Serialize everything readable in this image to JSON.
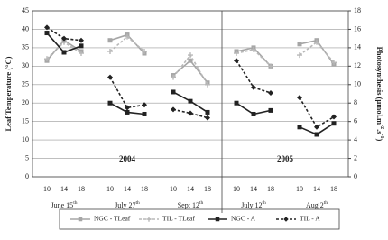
{
  "chart_data": {
    "type": "line",
    "ylabel": "Leaf Temperature (°C)",
    "y2label": [
      "Photosynthesis (μmol.m",
      "-2",
      ".s",
      "-1",
      ")"
    ],
    "ylim": [
      0,
      45
    ],
    "yticks": [
      0,
      5,
      10,
      15,
      20,
      25,
      30,
      35,
      40,
      45
    ],
    "y2lim": [
      0,
      18
    ],
    "y2ticks": [
      0,
      2,
      4,
      6,
      8,
      10,
      12,
      14,
      16,
      18
    ],
    "categories": [
      "10",
      "14",
      "18",
      "10",
      "14",
      "18",
      "10",
      "14",
      "18",
      "10",
      "14",
      "18",
      "10",
      "14",
      "18"
    ],
    "panels": [
      {
        "label": "2004",
        "groups": [
          {
            "label": "June 15",
            "sup": "th"
          },
          {
            "label": "July 27",
            "sup": "th"
          },
          {
            "label": "Sept 12",
            "sup": "th"
          }
        ]
      },
      {
        "label": "2005",
        "groups": [
          {
            "label": "July 12",
            "sup": "th"
          },
          {
            "label": "Aug 2",
            "sup": "th"
          }
        ]
      }
    ],
    "series": [
      {
        "name": "NGC - TLeaf",
        "color": "#a6a6a6",
        "dash": false,
        "marker": "square",
        "values": [
          31.5,
          37,
          34,
          37,
          38.5,
          33.5,
          27.5,
          31.5,
          25.5,
          34,
          35,
          30,
          36,
          37,
          30.5
        ]
      },
      {
        "name": "TIL - TLeaf",
        "color": "#b8b8b8",
        "dash": true,
        "marker": "cross",
        "values": [
          32,
          36.5,
          33.5,
          34,
          38,
          34,
          27,
          33,
          25,
          33.5,
          34.5,
          30,
          33,
          36.5,
          31
        ]
      },
      {
        "name": "NGC - A",
        "color": "#222222",
        "dash": false,
        "marker": "square",
        "axis": "y2",
        "values": [
          15.6,
          13.5,
          14.2,
          8,
          7,
          6.8,
          9.2,
          8.2,
          7,
          8,
          6.8,
          7.2,
          5.4,
          4.6,
          5.8
        ]
      },
      {
        "name": "TIL - A",
        "color": "#222222",
        "dash": true,
        "marker": "diamond",
        "axis": "y2",
        "values": [
          16.2,
          15,
          14.8,
          10.8,
          7.5,
          7.8,
          7.3,
          6.9,
          6.4,
          12.6,
          9.7,
          9.1,
          8.6,
          5.4,
          6.5
        ]
      }
    ]
  }
}
